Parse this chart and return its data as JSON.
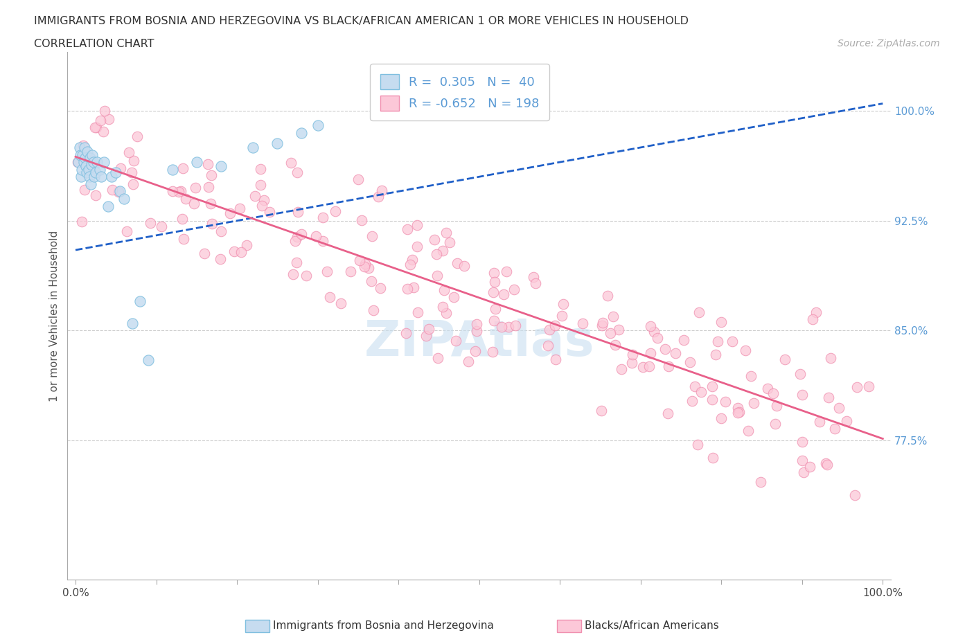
{
  "title": "IMMIGRANTS FROM BOSNIA AND HERZEGOVINA VS BLACK/AFRICAN AMERICAN 1 OR MORE VEHICLES IN HOUSEHOLD",
  "subtitle": "CORRELATION CHART",
  "source": "Source: ZipAtlas.com",
  "ylabel": "1 or more Vehicles in Household",
  "right_ytick_labels": [
    "100.0%",
    "92.5%",
    "85.0%",
    "77.5%"
  ],
  "right_ytick_values": [
    1.0,
    0.925,
    0.85,
    0.775
  ],
  "blue_color": "#7fbfdf",
  "blue_fill": "#c6dcf0",
  "pink_color": "#f090b0",
  "pink_fill": "#fcc8d8",
  "trend_blue": "#2060c8",
  "trend_pink": "#e8608a",
  "background_color": "#ffffff",
  "grid_color": "#cccccc",
  "watermark_color": "#c8dff0",
  "xmin": 0.0,
  "xmax": 1.0,
  "ymin": 0.68,
  "ymax": 1.04
}
